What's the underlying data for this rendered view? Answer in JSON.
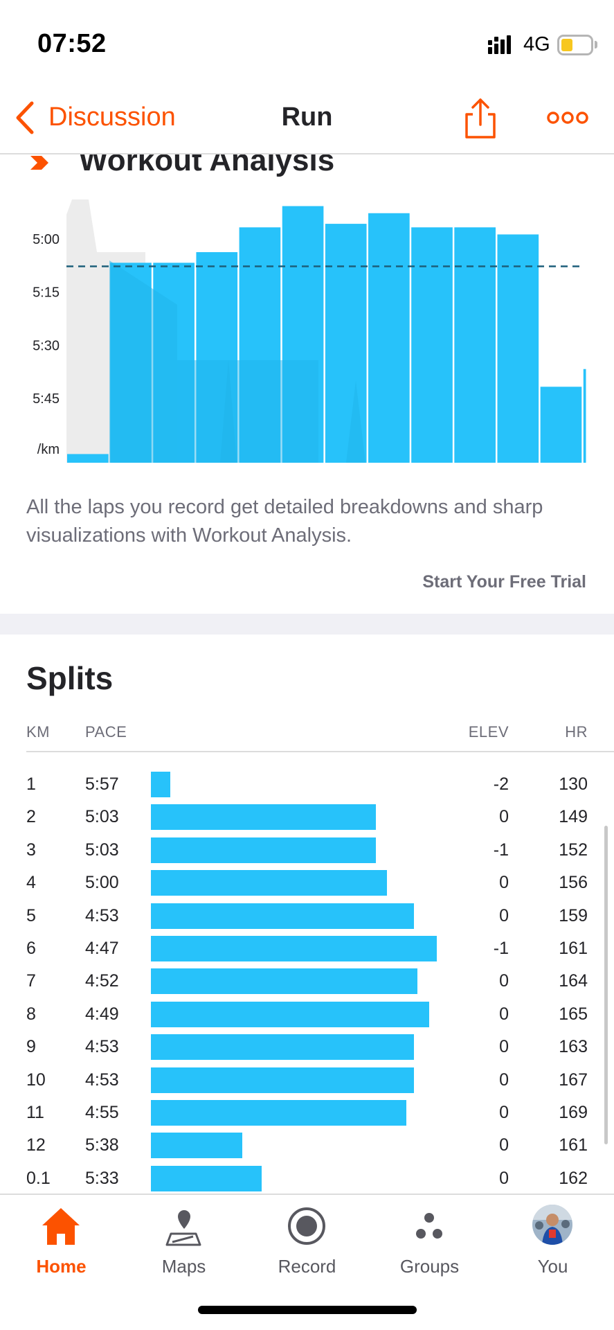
{
  "status": {
    "time": "07:52",
    "network": "4G"
  },
  "nav": {
    "back_label": "Discussion",
    "title": "Run"
  },
  "workout_analysis": {
    "title": "Workout Analysis",
    "description": "All the laps you record get detailed breakdowns and sharp visualizations with Workout Analysis.",
    "cta": "Start Your Free Trial"
  },
  "chart_data": {
    "type": "bar",
    "title": "",
    "ylabel": "/km",
    "y_ticks": [
      "5:00",
      "5:15",
      "5:30",
      "5:45"
    ],
    "y_tick_seconds": [
      300,
      315,
      330,
      345
    ],
    "y_inverted": true,
    "ylim_seconds": [
      285,
      358
    ],
    "avg_pace_seconds": 304,
    "bar_color": "#27c2fa",
    "laps": [
      {
        "lap": "1",
        "distance_km": 1,
        "pace": "5:57",
        "pace_seconds": 357
      },
      {
        "lap": "2",
        "distance_km": 1,
        "pace": "5:03",
        "pace_seconds": 303
      },
      {
        "lap": "3",
        "distance_km": 1,
        "pace": "5:03",
        "pace_seconds": 303
      },
      {
        "lap": "4",
        "distance_km": 1,
        "pace": "5:00",
        "pace_seconds": 300
      },
      {
        "lap": "5",
        "distance_km": 1,
        "pace": "4:53",
        "pace_seconds": 293
      },
      {
        "lap": "6",
        "distance_km": 1,
        "pace": "4:47",
        "pace_seconds": 287
      },
      {
        "lap": "7",
        "distance_km": 1,
        "pace": "4:52",
        "pace_seconds": 292
      },
      {
        "lap": "8",
        "distance_km": 1,
        "pace": "4:49",
        "pace_seconds": 289
      },
      {
        "lap": "9",
        "distance_km": 1,
        "pace": "4:53",
        "pace_seconds": 293
      },
      {
        "lap": "10",
        "distance_km": 1,
        "pace": "4:53",
        "pace_seconds": 293
      },
      {
        "lap": "11",
        "distance_km": 1,
        "pace": "4:55",
        "pace_seconds": 295
      },
      {
        "lap": "12",
        "distance_km": 1,
        "pace": "5:38",
        "pace_seconds": 338
      },
      {
        "lap": "0.1",
        "distance_km": 0.1,
        "pace": "5:33",
        "pace_seconds": 333
      }
    ]
  },
  "splits": {
    "title": "Splits",
    "headers": {
      "km": "KM",
      "pace": "PACE",
      "elev": "ELEV",
      "hr": "HR"
    },
    "bar_color": "#27c2fa",
    "rows": [
      {
        "km": "1",
        "pace": "5:57",
        "pace_seconds": 357,
        "elev": "-2",
        "hr": "130"
      },
      {
        "km": "2",
        "pace": "5:03",
        "pace_seconds": 303,
        "elev": "0",
        "hr": "149"
      },
      {
        "km": "3",
        "pace": "5:03",
        "pace_seconds": 303,
        "elev": "-1",
        "hr": "152"
      },
      {
        "km": "4",
        "pace": "5:00",
        "pace_seconds": 300,
        "elev": "0",
        "hr": "156"
      },
      {
        "km": "5",
        "pace": "4:53",
        "pace_seconds": 293,
        "elev": "0",
        "hr": "159"
      },
      {
        "km": "6",
        "pace": "4:47",
        "pace_seconds": 287,
        "elev": "-1",
        "hr": "161"
      },
      {
        "km": "7",
        "pace": "4:52",
        "pace_seconds": 292,
        "elev": "0",
        "hr": "164"
      },
      {
        "km": "8",
        "pace": "4:49",
        "pace_seconds": 289,
        "elev": "0",
        "hr": "165"
      },
      {
        "km": "9",
        "pace": "4:53",
        "pace_seconds": 293,
        "elev": "0",
        "hr": "163"
      },
      {
        "km": "10",
        "pace": "4:53",
        "pace_seconds": 293,
        "elev": "0",
        "hr": "167"
      },
      {
        "km": "11",
        "pace": "4:55",
        "pace_seconds": 295,
        "elev": "0",
        "hr": "169"
      },
      {
        "km": "12",
        "pace": "5:38",
        "pace_seconds": 338,
        "elev": "0",
        "hr": "161"
      },
      {
        "km": "0.1",
        "pace": "5:33",
        "pace_seconds": 333,
        "elev": "0",
        "hr": "162"
      }
    ]
  },
  "tabbar": {
    "active": "home",
    "items": [
      {
        "id": "home",
        "label": "Home",
        "icon": "home-icon"
      },
      {
        "id": "maps",
        "label": "Maps",
        "icon": "map-icon"
      },
      {
        "id": "record",
        "label": "Record",
        "icon": "record-icon"
      },
      {
        "id": "groups",
        "label": "Groups",
        "icon": "groups-icon"
      },
      {
        "id": "you",
        "label": "You",
        "icon": "avatar"
      }
    ]
  },
  "colors": {
    "accent": "#fc5200",
    "bar": "#27c2fa",
    "text": "#242428",
    "muted": "#6d6d78"
  }
}
